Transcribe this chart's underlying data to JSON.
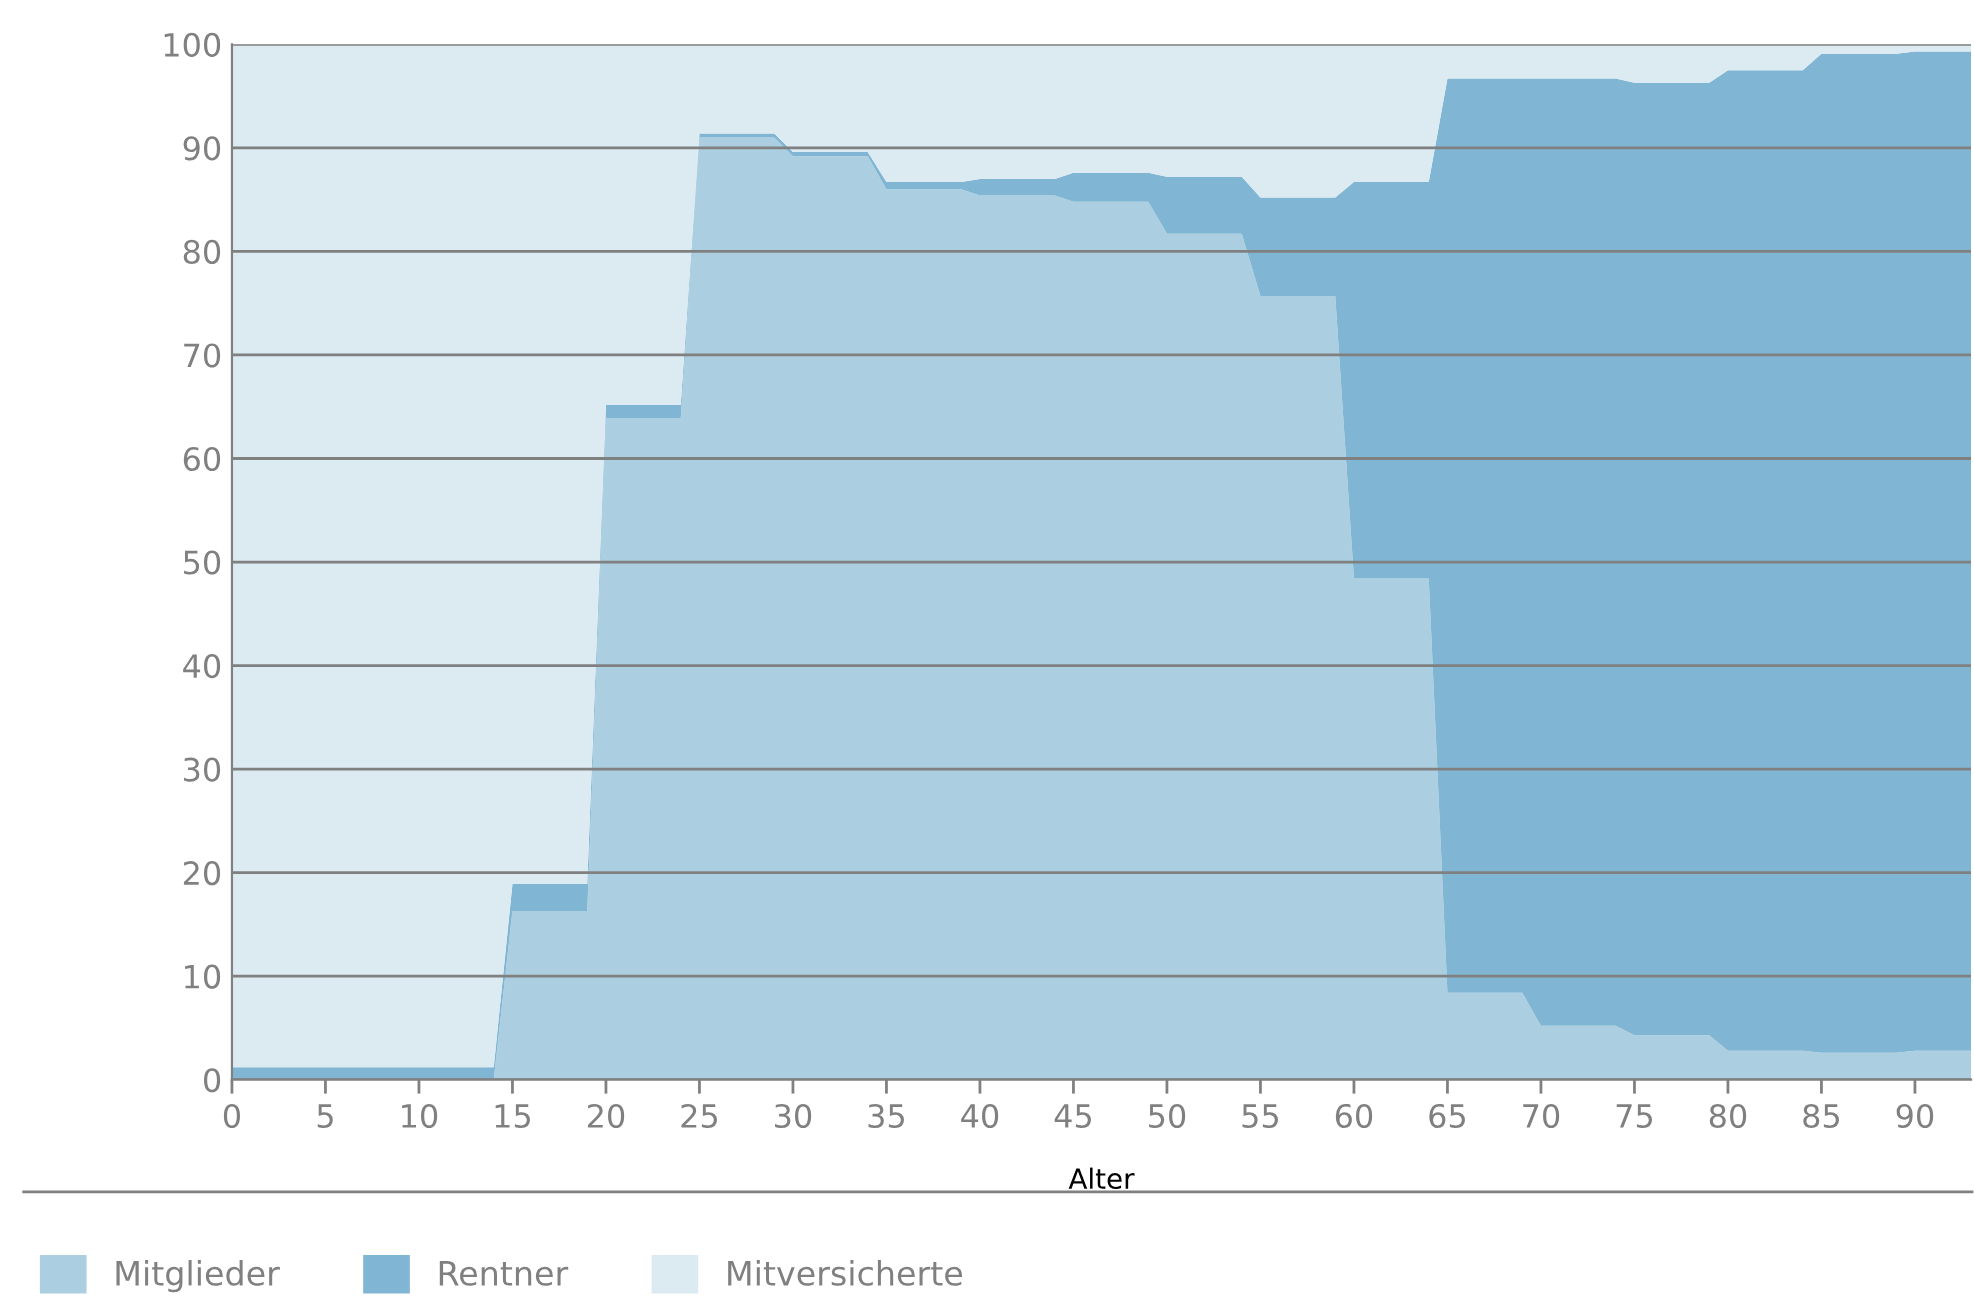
{
  "chart_data": {
    "type": "area",
    "stacked": true,
    "xlabel": "Alter",
    "x": [
      0,
      14,
      15,
      19,
      20,
      24,
      25,
      29,
      30,
      34,
      35,
      39,
      40,
      44,
      45,
      49,
      50,
      54,
      55,
      59,
      60,
      64,
      65,
      69,
      70,
      74,
      75,
      79,
      80,
      84,
      85,
      89,
      90,
      93
    ],
    "series": [
      {
        "name": "Mitglieder",
        "color": "#abcfe0",
        "values": [
          0,
          0,
          16.3,
          16.3,
          63.9,
          63.9,
          91,
          91,
          89.2,
          89.2,
          86,
          86,
          85.4,
          85.4,
          84.8,
          84.8,
          81.7,
          81.7,
          75.7,
          75.7,
          48.4,
          48.4,
          8.4,
          8.4,
          5.2,
          5.2,
          4.3,
          4.3,
          2.8,
          2.8,
          2.6,
          2.6,
          2.8,
          2.8
        ]
      },
      {
        "name": "Rentner",
        "color": "#80b6d3",
        "values": [
          1.2,
          1.2,
          2.6,
          2.6,
          1.3,
          1.3,
          0.4,
          0.4,
          0.4,
          0.4,
          0.7,
          0.7,
          1.6,
          1.6,
          2.8,
          2.8,
          5.5,
          5.5,
          9.5,
          9.5,
          38.3,
          38.3,
          88.3,
          88.3,
          91.5,
          91.5,
          92,
          92,
          94.7,
          94.7,
          96.5,
          96.5,
          96.5,
          96.5
        ]
      },
      {
        "name": "Mitversicherte",
        "color": "#dceaf2",
        "values": [
          98.8,
          98.8,
          81.1,
          81.1,
          34.8,
          34.8,
          8.6,
          8.6,
          10.4,
          10.4,
          13.3,
          13.3,
          13,
          13,
          12.4,
          12.4,
          12.8,
          12.8,
          14.8,
          14.8,
          13.3,
          13.3,
          3.3,
          3.3,
          3.3,
          3.3,
          3.7,
          3.7,
          2.5,
          2.5,
          0.9,
          0.9,
          0.7,
          0.7
        ]
      }
    ],
    "xlim": [
      0,
      93
    ],
    "ylim": [
      0,
      100
    ],
    "xticks": [
      0,
      5,
      10,
      15,
      20,
      25,
      30,
      35,
      40,
      45,
      50,
      55,
      60,
      65,
      70,
      75,
      80,
      85,
      90
    ],
    "yticks": [
      0,
      10,
      20,
      30,
      40,
      50,
      60,
      70,
      80,
      90,
      100
    ],
    "grid": "y",
    "legend": "bottom"
  }
}
